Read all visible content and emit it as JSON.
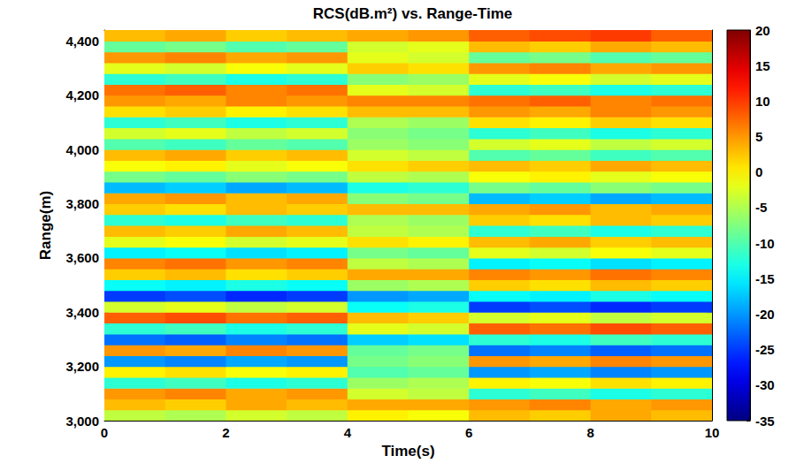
{
  "chart_data": {
    "type": "heatmap",
    "title": "RCS(dB.m²) vs. Range-Time",
    "xlabel": "Time(s)",
    "ylabel": "Range(m)",
    "xlim": [
      0,
      10
    ],
    "ylim": [
      3000,
      4440
    ],
    "xticks": [
      0,
      2,
      4,
      6,
      8,
      10
    ],
    "yticks": [
      3000,
      3200,
      3400,
      3600,
      3800,
      4000,
      4200,
      4400
    ],
    "grid": false,
    "x_edges": [
      0,
      1,
      2,
      3,
      4,
      5,
      6,
      7,
      8,
      9,
      10
    ],
    "y_edges": [
      3000,
      3040,
      3080,
      3120,
      3160,
      3200,
      3240,
      3280,
      3320,
      3360,
      3400,
      3440,
      3480,
      3520,
      3560,
      3600,
      3640,
      3680,
      3720,
      3760,
      3800,
      3840,
      3880,
      3920,
      3960,
      4000,
      4040,
      4080,
      4120,
      4160,
      4200,
      4240,
      4280,
      4320,
      4360,
      4400,
      4440
    ],
    "cells": [
      [
        -4,
        -5,
        -3,
        -4,
        0,
        -1,
        3,
        2,
        4,
        3
      ],
      [
        3,
        2,
        4,
        3,
        4,
        4,
        5,
        6,
        4,
        5
      ],
      [
        5,
        6,
        4,
        5,
        -3,
        -4,
        -12,
        -11,
        -13,
        -12
      ],
      [
        -12,
        -11,
        -13,
        -12,
        -6,
        -5,
        0,
        -1,
        1,
        0
      ],
      [
        0,
        1,
        -1,
        0,
        -10,
        -9,
        -20,
        -19,
        -21,
        -20
      ],
      [
        -20,
        -21,
        -19,
        -20,
        -8,
        -7,
        5,
        4,
        6,
        5
      ],
      [
        5,
        4,
        6,
        5,
        -9,
        -8,
        -22,
        -21,
        -23,
        -22
      ],
      [
        -22,
        -23,
        -21,
        -22,
        -17,
        -16,
        -12,
        -13,
        -11,
        -12
      ],
      [
        -12,
        -11,
        -13,
        -12,
        -2,
        -3,
        8,
        7,
        9,
        8
      ],
      [
        8,
        9,
        7,
        8,
        3,
        2,
        -3,
        -2,
        -4,
        -3
      ],
      [
        -3,
        -2,
        -4,
        -3,
        -14,
        -13,
        -25,
        -24,
        -26,
        -25
      ],
      [
        -25,
        -24,
        -26,
        -25,
        -20,
        -19,
        -14,
        -15,
        -13,
        -14
      ],
      [
        -14,
        -15,
        -13,
        -14,
        -6,
        -5,
        2,
        1,
        3,
        2
      ],
      [
        2,
        3,
        1,
        2,
        4,
        4,
        6,
        5,
        7,
        6
      ],
      [
        6,
        7,
        5,
        6,
        -4,
        -5,
        -15,
        -14,
        -16,
        -15
      ],
      [
        -15,
        -14,
        -16,
        -15,
        -8,
        -9,
        -2,
        -3,
        -1,
        -2
      ],
      [
        -2,
        -1,
        -3,
        -2,
        1,
        0,
        3,
        4,
        2,
        3
      ],
      [
        3,
        2,
        4,
        3,
        -4,
        -5,
        -12,
        -11,
        -13,
        -12
      ],
      [
        -12,
        -13,
        -11,
        -12,
        -5,
        -6,
        2,
        1,
        3,
        2
      ],
      [
        2,
        1,
        3,
        2,
        3,
        3,
        4,
        5,
        3,
        4
      ],
      [
        4,
        5,
        3,
        4,
        -7,
        -8,
        -18,
        -17,
        -19,
        -18
      ],
      [
        -18,
        -17,
        -19,
        -18,
        -13,
        -12,
        -8,
        -9,
        -7,
        -8
      ],
      [
        -8,
        -9,
        -7,
        -8,
        -4,
        -5,
        -1,
        0,
        -2,
        -1
      ],
      [
        -1,
        0,
        -2,
        -1,
        1,
        2,
        3,
        2,
        4,
        3
      ],
      [
        3,
        4,
        2,
        3,
        -3,
        -4,
        -10,
        -9,
        -11,
        -10
      ],
      [
        -10,
        -11,
        -9,
        -10,
        -6,
        -7,
        -3,
        -2,
        -4,
        -3
      ],
      [
        -3,
        -2,
        -4,
        -3,
        -7,
        -8,
        -12,
        -11,
        -13,
        -12
      ],
      [
        -12,
        -11,
        -13,
        -12,
        -5,
        -6,
        1,
        0,
        2,
        1
      ],
      [
        1,
        2,
        0,
        1,
        3,
        3,
        5,
        4,
        6,
        5
      ],
      [
        5,
        4,
        6,
        5,
        6,
        6,
        7,
        8,
        6,
        7
      ],
      [
        7,
        8,
        6,
        7,
        -2,
        -3,
        -12,
        -11,
        -13,
        -12
      ],
      [
        -12,
        -11,
        -13,
        -12,
        -7,
        -6,
        -2,
        -1,
        -3,
        -2
      ],
      [
        -2,
        -3,
        -1,
        -2,
        2,
        1,
        5,
        6,
        4,
        5
      ],
      [
        5,
        6,
        4,
        5,
        -2,
        -3,
        -9,
        -8,
        -10,
        -9
      ],
      [
        -9,
        -8,
        -10,
        -9,
        -3,
        -2,
        3,
        2,
        4,
        3
      ],
      [
        3,
        4,
        2,
        3,
        4,
        5,
        8,
        9,
        10,
        8
      ]
    ],
    "clim": [
      -35,
      20
    ],
    "cticks": [
      -35,
      -30,
      -25,
      -20,
      -15,
      -10,
      -5,
      0,
      5,
      10,
      15,
      20
    ]
  }
}
